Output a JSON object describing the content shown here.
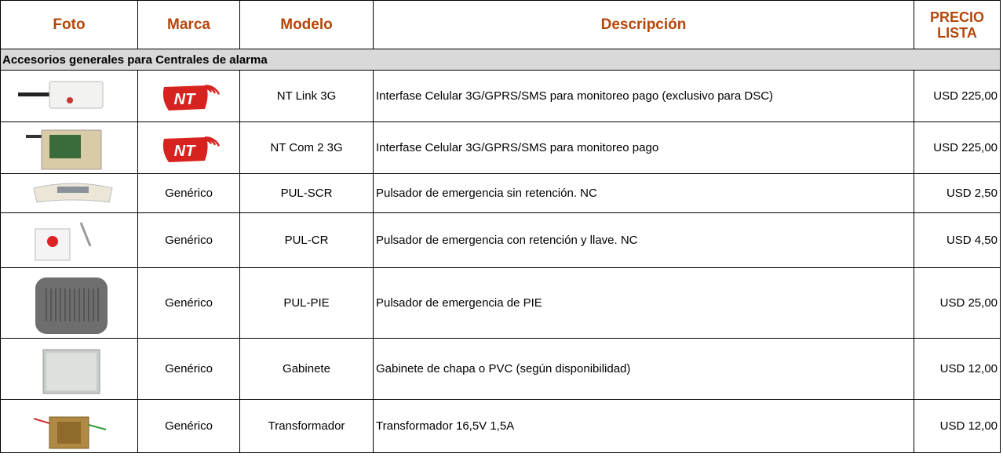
{
  "table": {
    "columns": [
      "Foto",
      "Marca",
      "Modelo",
      "Descripción",
      "PRECIO LISTA"
    ],
    "section": "Accesorios generales para Centrales de alarma",
    "rows": [
      {
        "logo": "NT",
        "modelo": "NT Link 3G",
        "descripcion": "Interfase Celular 3G/GPRS/SMS para monitoreo pago (exclusivo para DSC)",
        "precio": "USD 225,00"
      },
      {
        "logo": "NT",
        "modelo": "NT Com 2 3G",
        "descripcion": "Interfase Celular 3G/GPRS/SMS para monitoreo pago",
        "precio": "USD 225,00"
      },
      {
        "marca": "Genérico",
        "modelo": "PUL-SCR",
        "descripcion": "Pulsador de emergencia sin retención. NC",
        "precio": "USD 2,50"
      },
      {
        "marca": "Genérico",
        "modelo": "PUL-CR",
        "descripcion": "Pulsador de emergencia con retención y llave. NC",
        "precio": "USD 4,50"
      },
      {
        "marca": "Genérico",
        "modelo": "PUL-PIE",
        "descripcion": "Pulsador de emergencia de PIE",
        "precio": "USD 25,00"
      },
      {
        "marca": "Genérico",
        "modelo": "Gabinete",
        "descripcion": "Gabinete de chapa o PVC (según disponibilidad)",
        "precio": "USD 12,00"
      },
      {
        "marca": "Genérico",
        "modelo": "Transformador",
        "descripcion": "Transformador 16,5V 1,5A",
        "precio": "USD 12,00"
      }
    ]
  }
}
